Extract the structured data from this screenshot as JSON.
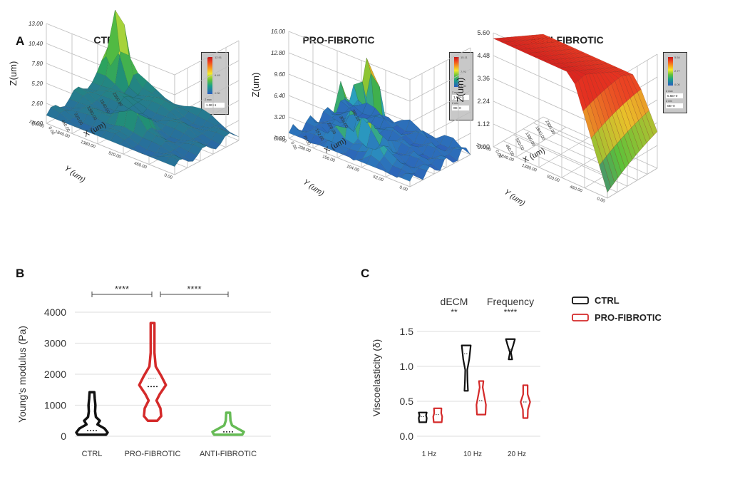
{
  "panels": {
    "A": {
      "letter": "A"
    },
    "B": {
      "letter": "B"
    },
    "C": {
      "letter": "C"
    }
  },
  "chart_data": [
    {
      "type": "surface3d",
      "panel": "A",
      "title": "CTRL",
      "title_color": "#111111",
      "zlabel": "Z(um)",
      "ylabel": "Y (um)",
      "xlabel": "X (um)",
      "z_ticks": [
        "0.00",
        "2.60",
        "5.20",
        "7.80",
        "10.40",
        "13.00"
      ],
      "y_ticks": [
        "0.00",
        "460.00",
        "920.00",
        "1380.00",
        "1840.00",
        "2300.00"
      ],
      "x_ticks": [
        "0.00",
        "460.00",
        "920.00",
        "1380.00",
        "1840.00",
        "2300.00"
      ],
      "colorbar": {
        "max_label": "12.91",
        "mid_label": "6.45",
        "min_label": "0.00",
        "zmax_label": "Z max",
        "zmax_value": "1.3E+1"
      }
    },
    {
      "type": "surface3d",
      "panel": "A",
      "title": "PRO-FIBROTIC",
      "title_color": "#d42a2a",
      "zlabel": "Z(um)",
      "ylabel": "Y (um)",
      "xlabel": "X (um)",
      "z_ticks": [
        "0.00",
        "3.20",
        "6.40",
        "9.60",
        "12.80",
        "16.00"
      ],
      "y_ticks": [
        "0.00",
        "52.00",
        "104.00",
        "156.00",
        "208.00",
        "260.00"
      ],
      "x_ticks": [
        "0.00",
        "76.00",
        "152.00",
        "228.00",
        "304.00",
        "380.00"
      ],
      "colorbar": {
        "max_label": "15.11",
        "mid_label": "7.55",
        "min_label": "0.00",
        "zmax_label": "Z max",
        "zmax_value": "1.6E+1",
        "zmin_label": "Z min",
        "zmin_value": "0E+0"
      }
    },
    {
      "type": "surface3d",
      "panel": "A",
      "title": "ANTI-FIBROTIC",
      "title_color": "#4caf3c",
      "zlabel": "Z(um)",
      "ylabel": "Y (um)",
      "xlabel": "X (um)",
      "z_ticks": [
        "0.00",
        "1.12",
        "2.24",
        "3.36",
        "4.48",
        "5.60"
      ],
      "y_ticks": [
        "0.00",
        "460.00",
        "920.00",
        "1380.00",
        "1840.00",
        "2300.00"
      ],
      "x_ticks": [
        "0.00",
        "460.00",
        "920.00",
        "1380.00",
        "1840.00",
        "2300.00"
      ],
      "colorbar": {
        "max_label": "5.54",
        "mid_label": "2.77",
        "min_label": "0.00",
        "zmax_label": "Z max",
        "zmax_value": "5.6E+0",
        "zmin_label": "Z min",
        "zmin_value": "0E+0"
      }
    },
    {
      "type": "violin",
      "panel": "B",
      "ylabel": "Young's modulus (Pa)",
      "ylim": [
        0,
        4000
      ],
      "y_ticks": [
        0,
        1000,
        2000,
        3000,
        4000
      ],
      "grid": true,
      "categories": [
        "CTRL",
        "PRO-FIBROTIC",
        "ANTI-FIBROTIC"
      ],
      "series": [
        {
          "name": "CTRL",
          "color": "#111111",
          "min": 50,
          "max": 1420,
          "median": 180,
          "shape": [
            [
              50,
              0.9
            ],
            [
              120,
              1.0
            ],
            [
              250,
              0.8
            ],
            [
              380,
              0.35
            ],
            [
              500,
              0.5
            ],
            [
              620,
              0.25
            ],
            [
              800,
              0.2
            ],
            [
              1000,
              0.22
            ],
            [
              1200,
              0.18
            ],
            [
              1420,
              0.15
            ]
          ]
        },
        {
          "name": "PRO-FIBROTIC",
          "color": "#d42a2a",
          "min": 500,
          "max": 3650,
          "median": 1600,
          "q3": 1870,
          "q1": 950,
          "shape": [
            [
              500,
              0.3
            ],
            [
              650,
              0.55
            ],
            [
              900,
              0.5
            ],
            [
              1150,
              0.25
            ],
            [
              1350,
              0.45
            ],
            [
              1650,
              0.85
            ],
            [
              1950,
              0.55
            ],
            [
              2250,
              0.2
            ],
            [
              2700,
              0.12
            ],
            [
              3200,
              0.12
            ],
            [
              3650,
              0.12
            ]
          ]
        },
        {
          "name": "ANTI-FIBROTIC",
          "color": "#66bb55",
          "min": 50,
          "max": 760,
          "median": 140,
          "shape": [
            [
              50,
              0.9
            ],
            [
              140,
              1.0
            ],
            [
              250,
              0.6
            ],
            [
              350,
              0.25
            ],
            [
              500,
              0.15
            ],
            [
              760,
              0.12
            ]
          ]
        }
      ],
      "significance": [
        {
          "from": "CTRL",
          "to": "PRO-FIBROTIC",
          "label": "****"
        },
        {
          "from": "PRO-FIBROTIC",
          "to": "ANTI-FIBROTIC",
          "label": "****"
        }
      ]
    },
    {
      "type": "violin",
      "panel": "C",
      "ylabel": "Viscoelasticity (δ)",
      "ylim": [
        0,
        1.5
      ],
      "y_ticks": [
        "0.0",
        "0.5",
        "1.0",
        "1.5"
      ],
      "grid": true,
      "categories": [
        "1 Hz",
        "10 Hz",
        "20 Hz"
      ],
      "annotations": [
        {
          "text": "dECM",
          "sub": "**"
        },
        {
          "text": "Frequency",
          "sub": "****"
        }
      ],
      "legend": {
        "position": "top-right",
        "entries": [
          {
            "name": "CTRL",
            "color": "#111111"
          },
          {
            "name": "PRO-FIBROTIC",
            "color": "#d42a2a"
          }
        ]
      },
      "series": [
        {
          "name": "CTRL",
          "color": "#111111",
          "values": [
            {
              "category": "1 Hz",
              "min": 0.2,
              "max": 0.34,
              "median": 0.28,
              "shape": [
                [
                  0.2,
                  0.7
                ],
                [
                  0.26,
                  0.8
                ],
                [
                  0.3,
                  0.65
                ],
                [
                  0.34,
                  0.8
                ]
              ]
            },
            {
              "category": "10 Hz",
              "min": 0.65,
              "max": 1.3,
              "median": 1.18,
              "shape": [
                [
                  0.65,
                  0.35
                ],
                [
                  0.8,
                  0.25
                ],
                [
                  0.95,
                  0.2
                ],
                [
                  1.1,
                  0.6
                ],
                [
                  1.3,
                  0.9
                ]
              ]
            },
            {
              "category": "20 Hz",
              "min": 1.1,
              "max": 1.39,
              "median": 1.24,
              "shape": [
                [
                  1.1,
                  0.35
                ],
                [
                  1.2,
                  0.1
                ],
                [
                  1.3,
                  0.55
                ],
                [
                  1.39,
                  0.9
                ]
              ]
            }
          ]
        },
        {
          "name": "PRO-FIBROTIC",
          "color": "#d42a2a",
          "values": [
            {
              "category": "1 Hz",
              "min": 0.2,
              "max": 0.4,
              "median": 0.31,
              "shape": [
                [
                  0.2,
                  0.8
                ],
                [
                  0.28,
                  0.9
                ],
                [
                  0.33,
                  0.7
                ],
                [
                  0.4,
                  0.75
                ]
              ]
            },
            {
              "category": "10 Hz",
              "min": 0.31,
              "max": 0.79,
              "median": 0.51,
              "shape": [
                [
                  0.31,
                  0.85
                ],
                [
                  0.45,
                  0.95
                ],
                [
                  0.6,
                  0.55
                ],
                [
                  0.7,
                  0.3
                ],
                [
                  0.79,
                  0.45
                ]
              ]
            },
            {
              "category": "20 Hz",
              "min": 0.26,
              "max": 0.73,
              "median": 0.49,
              "shape": [
                [
                  0.26,
                  0.45
                ],
                [
                  0.38,
                  0.5
                ],
                [
                  0.49,
                  0.95
                ],
                [
                  0.6,
                  0.45
                ],
                [
                  0.73,
                  0.45
                ]
              ]
            }
          ]
        }
      ]
    }
  ]
}
